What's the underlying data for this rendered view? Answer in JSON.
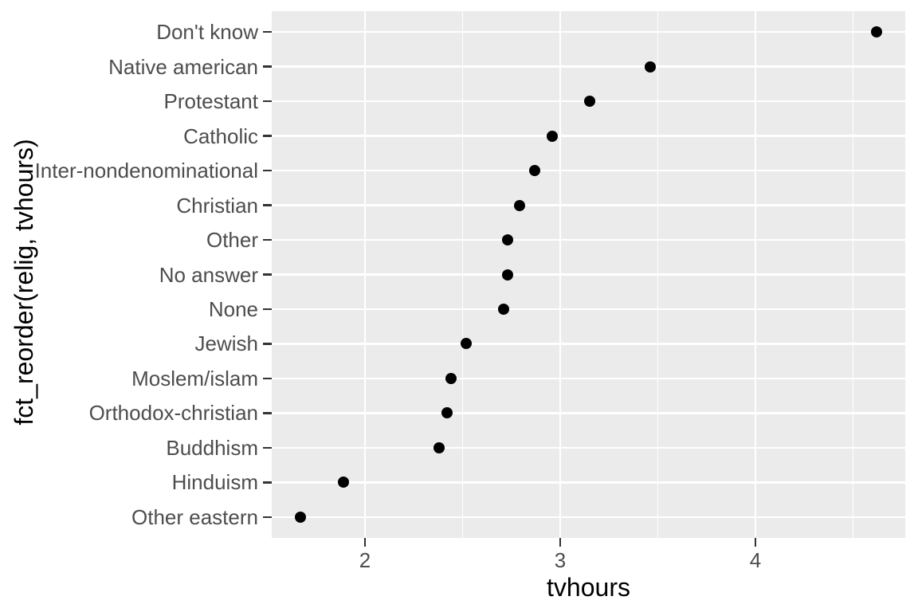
{
  "chart_data": {
    "type": "scatter",
    "subtype": "horizontal-dot-plot",
    "title": "",
    "xlabel": "tvhours",
    "ylabel": "fct_reorder(relig, tvhours)",
    "categories": [
      "Don't know",
      "Native american",
      "Protestant",
      "Catholic",
      "Inter-nondenominational",
      "Christian",
      "Other",
      "No answer",
      "None",
      "Jewish",
      "Moslem/islam",
      "Orthodox-christian",
      "Buddhism",
      "Hinduism",
      "Other eastern"
    ],
    "values": [
      4.62,
      3.46,
      3.15,
      2.96,
      2.87,
      2.79,
      2.73,
      2.73,
      2.71,
      2.52,
      2.44,
      2.42,
      2.38,
      1.89,
      1.67
    ],
    "xlim": [
      1.5225,
      4.7675
    ],
    "x_major_ticks": [
      2,
      3,
      4
    ],
    "x_major_tick_labels": [
      "2",
      "3",
      "4"
    ],
    "x_minor_gridlines": [
      2.5,
      3.5,
      4.5
    ],
    "grid": "on",
    "legend": "none",
    "style": {
      "panel_bg": "#EBEBEB",
      "grid_color": "#FFFFFF",
      "point_color": "#000000",
      "tick_mark_color": "#333333",
      "tick_label_color": "#4D4D4D",
      "axis_title_color": "#000000"
    }
  }
}
